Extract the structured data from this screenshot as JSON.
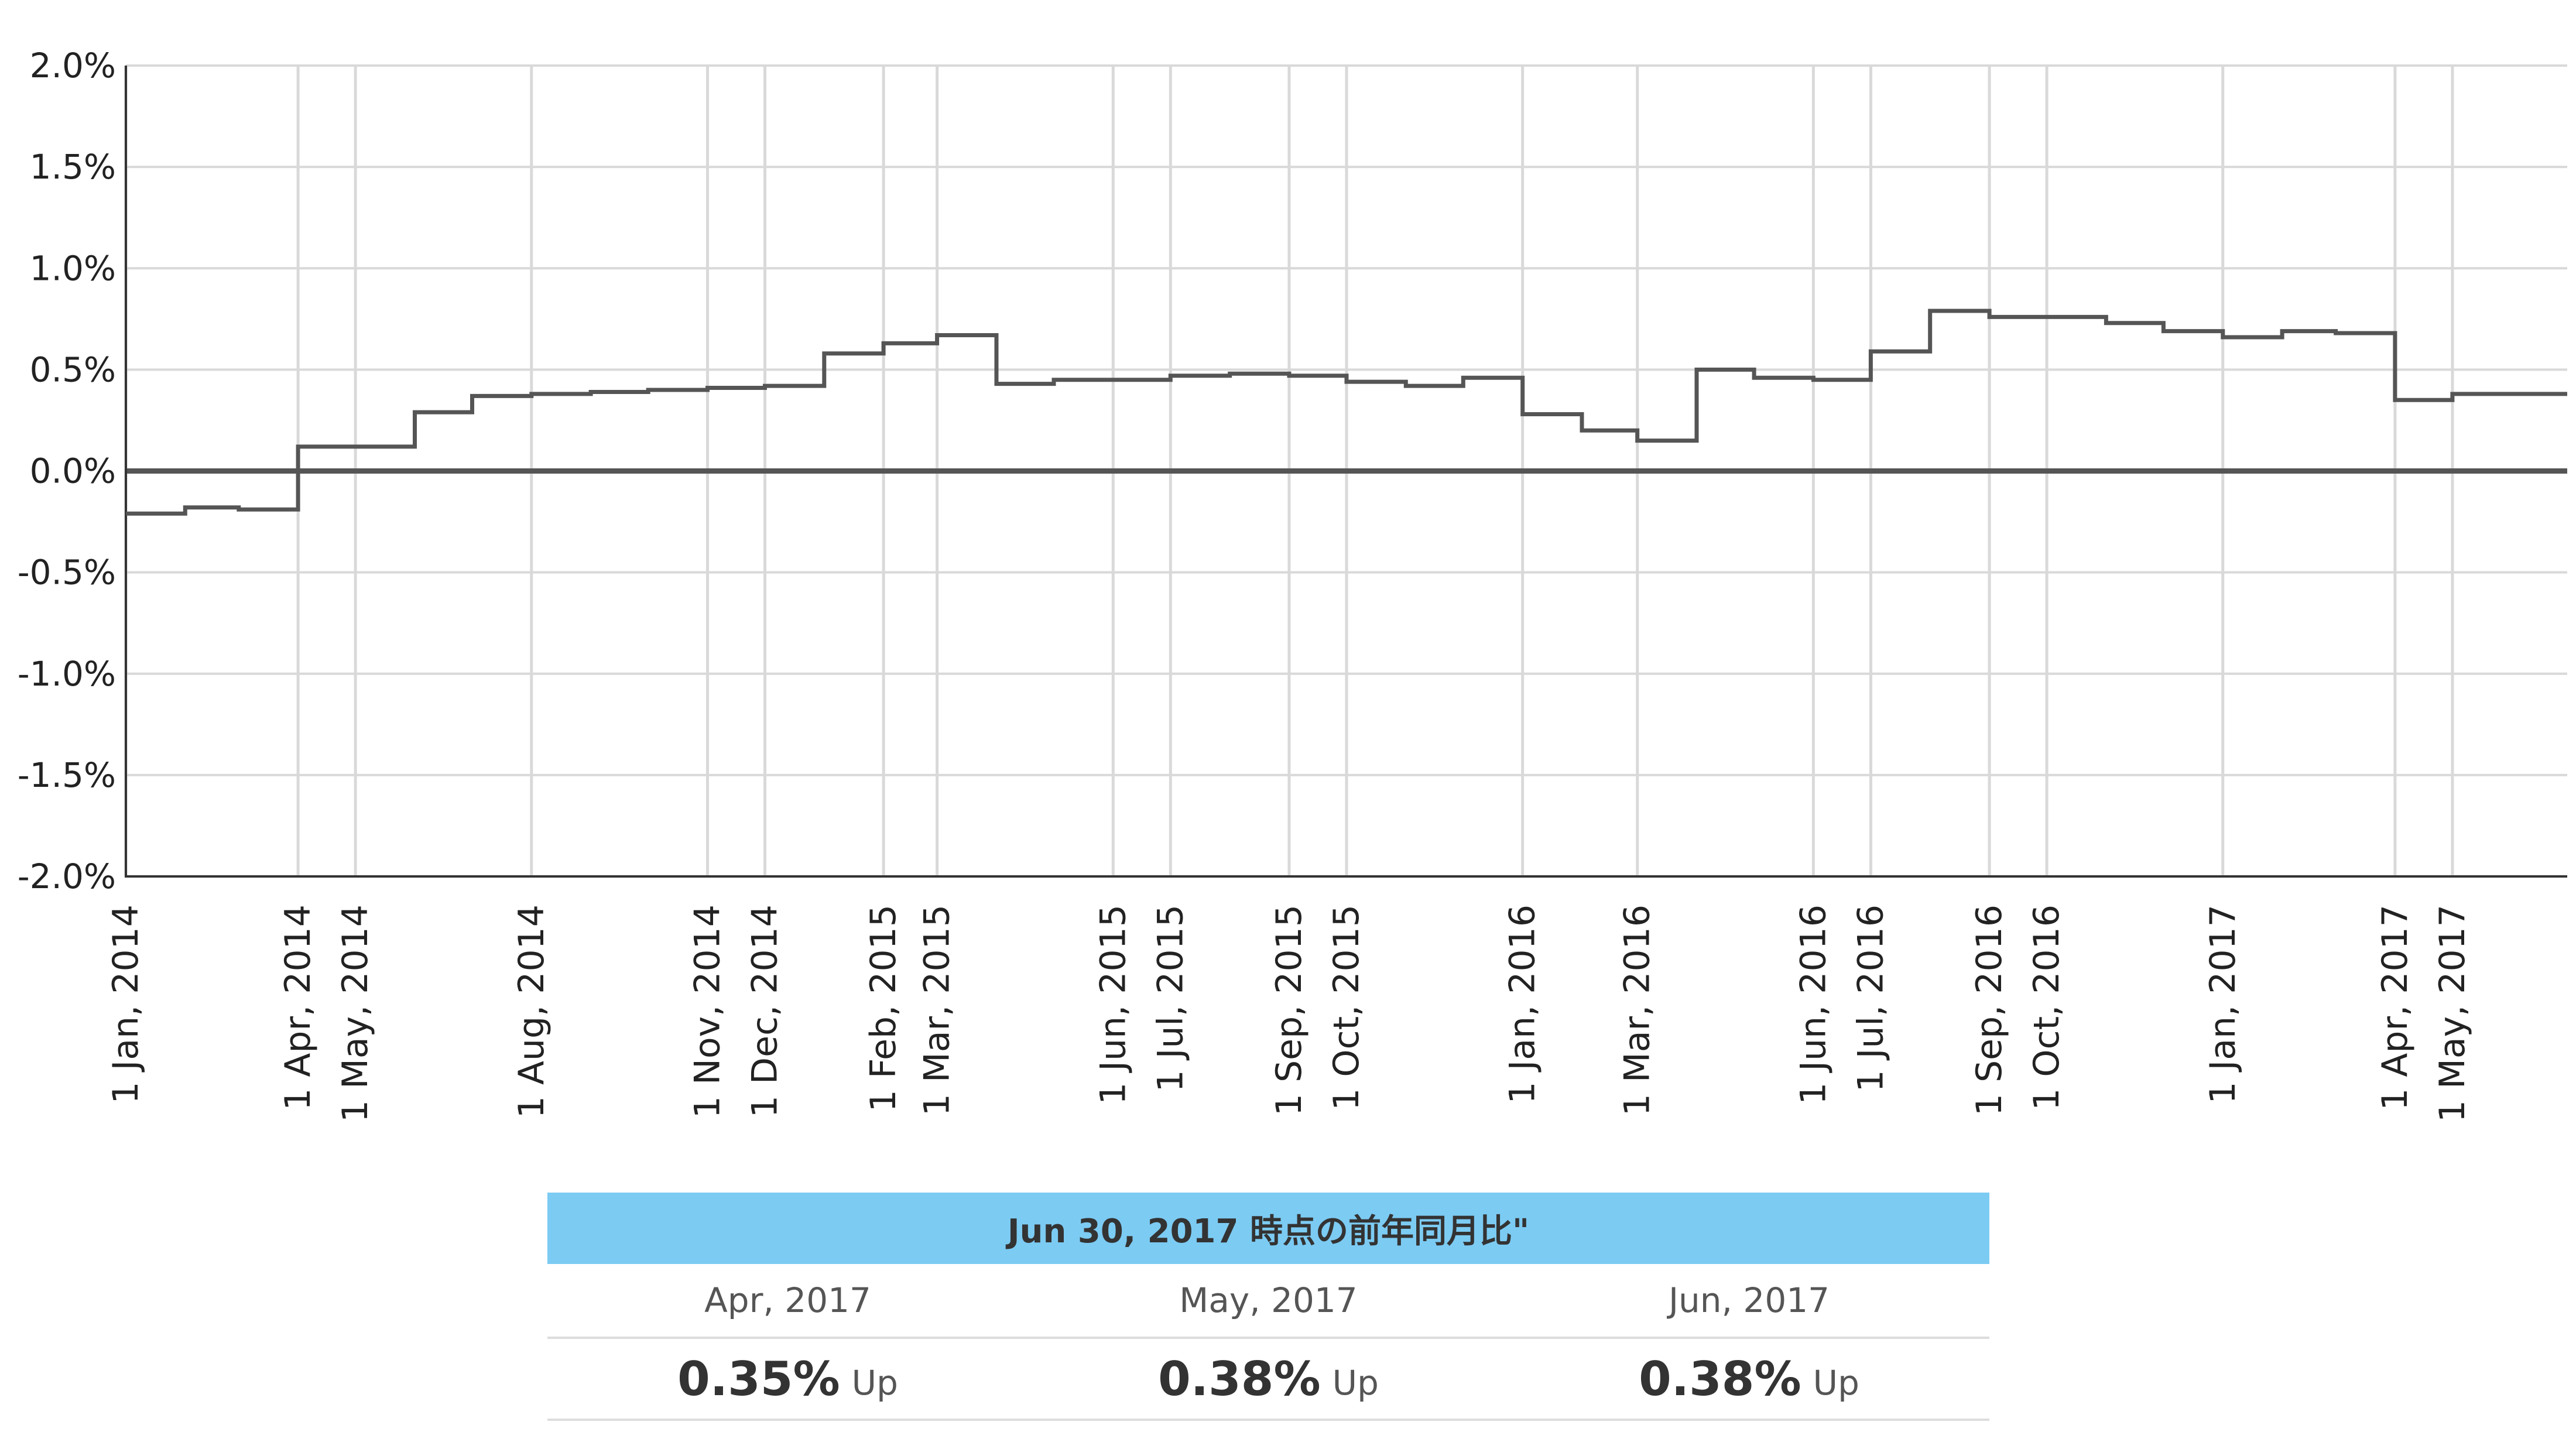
{
  "chart_data": {
    "type": "line",
    "line_shape": "step",
    "ylabel": "",
    "xlabel": "",
    "ylim": [
      -2.0,
      2.0
    ],
    "y_ticks": [
      "-2.0%",
      "-1.5%",
      "-1.0%",
      "-0.5%",
      "0.0%",
      "0.5%",
      "1.0%",
      "1.5%",
      "2.0%"
    ],
    "x_range": [
      "2014-01-01",
      "2017-06-30"
    ],
    "x_ticks": [
      {
        "date": "2014-01-01",
        "label": "1 Jan, 2014"
      },
      {
        "date": "2014-04-01",
        "label": "1 Apr, 2014"
      },
      {
        "date": "2014-05-01",
        "label": "1 May, 2014"
      },
      {
        "date": "2014-08-01",
        "label": "1 Aug, 2014"
      },
      {
        "date": "2014-11-01",
        "label": "1 Nov, 2014"
      },
      {
        "date": "2014-12-01",
        "label": "1 Dec, 2014"
      },
      {
        "date": "2015-02-01",
        "label": "1 Feb, 2015"
      },
      {
        "date": "2015-03-01",
        "label": "1 Mar, 2015"
      },
      {
        "date": "2015-06-01",
        "label": "1 Jun, 2015"
      },
      {
        "date": "2015-07-01",
        "label": "1 Jul, 2015"
      },
      {
        "date": "2015-09-01",
        "label": "1 Sep, 2015"
      },
      {
        "date": "2015-10-01",
        "label": "1 Oct, 2015"
      },
      {
        "date": "2016-01-01",
        "label": "1 Jan, 2016"
      },
      {
        "date": "2016-03-01",
        "label": "1 Mar, 2016"
      },
      {
        "date": "2016-06-01",
        "label": "1 Jun, 2016"
      },
      {
        "date": "2016-07-01",
        "label": "1 Jul, 2016"
      },
      {
        "date": "2016-09-01",
        "label": "1 Sep, 2016"
      },
      {
        "date": "2016-10-01",
        "label": "1 Oct, 2016"
      },
      {
        "date": "2017-01-01",
        "label": "1 Jan, 2017"
      },
      {
        "date": "2017-04-01",
        "label": "1 Apr, 2017"
      },
      {
        "date": "2017-05-01",
        "label": "1 May, 2017"
      }
    ],
    "grid": true,
    "series": [
      {
        "color": "#555555",
        "points": [
          {
            "x": "2014-01-01",
            "y": -0.21
          },
          {
            "x": "2014-02-01",
            "y": -0.18
          },
          {
            "x": "2014-03-01",
            "y": -0.19
          },
          {
            "x": "2014-04-01",
            "y": 0.12
          },
          {
            "x": "2014-05-01",
            "y": 0.12
          },
          {
            "x": "2014-06-01",
            "y": 0.29
          },
          {
            "x": "2014-07-01",
            "y": 0.37
          },
          {
            "x": "2014-08-01",
            "y": 0.38
          },
          {
            "x": "2014-09-01",
            "y": 0.39
          },
          {
            "x": "2014-10-01",
            "y": 0.4
          },
          {
            "x": "2014-11-01",
            "y": 0.41
          },
          {
            "x": "2014-12-01",
            "y": 0.42
          },
          {
            "x": "2015-01-01",
            "y": 0.58
          },
          {
            "x": "2015-02-01",
            "y": 0.63
          },
          {
            "x": "2015-03-01",
            "y": 0.67
          },
          {
            "x": "2015-04-01",
            "y": 0.43
          },
          {
            "x": "2015-05-01",
            "y": 0.45
          },
          {
            "x": "2015-06-01",
            "y": 0.45
          },
          {
            "x": "2015-07-01",
            "y": 0.47
          },
          {
            "x": "2015-08-01",
            "y": 0.48
          },
          {
            "x": "2015-09-01",
            "y": 0.47
          },
          {
            "x": "2015-10-01",
            "y": 0.44
          },
          {
            "x": "2015-11-01",
            "y": 0.42
          },
          {
            "x": "2015-12-01",
            "y": 0.46
          },
          {
            "x": "2016-01-01",
            "y": 0.28
          },
          {
            "x": "2016-02-01",
            "y": 0.2
          },
          {
            "x": "2016-03-01",
            "y": 0.15
          },
          {
            "x": "2016-04-01",
            "y": 0.5
          },
          {
            "x": "2016-05-01",
            "y": 0.46
          },
          {
            "x": "2016-06-01",
            "y": 0.45
          },
          {
            "x": "2016-07-01",
            "y": 0.59
          },
          {
            "x": "2016-08-01",
            "y": 0.79
          },
          {
            "x": "2016-09-01",
            "y": 0.76
          },
          {
            "x": "2016-10-01",
            "y": 0.76
          },
          {
            "x": "2016-11-01",
            "y": 0.73
          },
          {
            "x": "2016-12-01",
            "y": 0.69
          },
          {
            "x": "2017-01-01",
            "y": 0.66
          },
          {
            "x": "2017-02-01",
            "y": 0.69
          },
          {
            "x": "2017-03-01",
            "y": 0.68
          },
          {
            "x": "2017-04-01",
            "y": 0.35
          },
          {
            "x": "2017-05-01",
            "y": 0.38
          },
          {
            "x": "2017-06-01",
            "y": 0.38
          }
        ]
      }
    ],
    "colors": {
      "line": "#555555",
      "zero_line": "#555555",
      "grid": "#d9d9d9",
      "axis": "#333333",
      "tick_text": "#222222"
    }
  },
  "summary": {
    "header": "Jun 30, 2017 時点の前年同月比\"",
    "header_color": "#7ccbf3",
    "columns": [
      {
        "period": "Apr, 2017",
        "value": "0.35%",
        "direction": "Up"
      },
      {
        "period": "May, 2017",
        "value": "0.38%",
        "direction": "Up"
      },
      {
        "period": "Jun, 2017",
        "value": "0.38%",
        "direction": "Up"
      }
    ]
  }
}
